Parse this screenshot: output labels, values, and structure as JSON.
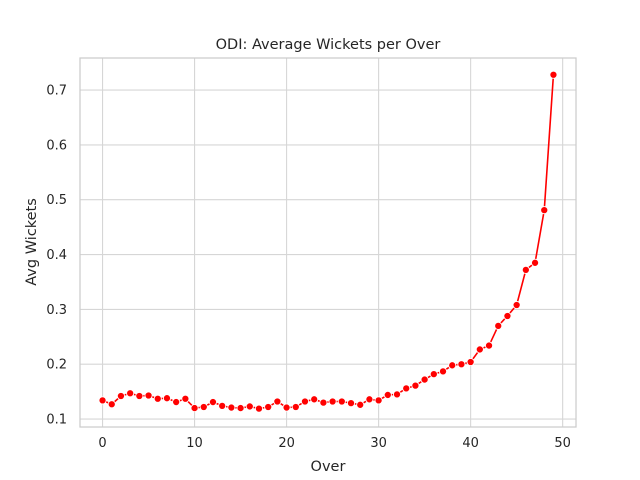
{
  "chart_data": {
    "type": "line",
    "title": "ODI: Average Wickets per Over",
    "xlabel": "Over",
    "ylabel": "Avg Wickets",
    "xlim": [
      -2.45,
      51.45
    ],
    "ylim": [
      0.0855,
      0.7585
    ],
    "x_ticks": [
      0,
      10,
      20,
      30,
      40,
      50
    ],
    "y_ticks": [
      0.1,
      0.2,
      0.3,
      0.4,
      0.5,
      0.6,
      0.7
    ],
    "grid": true,
    "legend": "none",
    "series": [
      {
        "color": "#ff0000",
        "marker": "circle",
        "x": [
          0,
          1,
          2,
          3,
          4,
          5,
          6,
          7,
          8,
          9,
          10,
          11,
          12,
          13,
          14,
          15,
          16,
          17,
          18,
          19,
          20,
          21,
          22,
          23,
          24,
          25,
          26,
          27,
          28,
          29,
          30,
          31,
          32,
          33,
          34,
          35,
          36,
          37,
          38,
          39,
          40,
          41,
          42,
          43,
          44,
          45,
          46,
          47,
          48,
          49
        ],
        "y": [
          0.134,
          0.127,
          0.142,
          0.147,
          0.142,
          0.143,
          0.137,
          0.138,
          0.131,
          0.137,
          0.12,
          0.122,
          0.131,
          0.124,
          0.121,
          0.12,
          0.123,
          0.119,
          0.122,
          0.132,
          0.121,
          0.122,
          0.132,
          0.136,
          0.13,
          0.132,
          0.132,
          0.129,
          0.126,
          0.136,
          0.134,
          0.144,
          0.145,
          0.156,
          0.161,
          0.172,
          0.182,
          0.187,
          0.198,
          0.2,
          0.204,
          0.227,
          0.234,
          0.27,
          0.288,
          0.308,
          0.372,
          0.385,
          0.481,
          0.728
        ]
      }
    ]
  }
}
